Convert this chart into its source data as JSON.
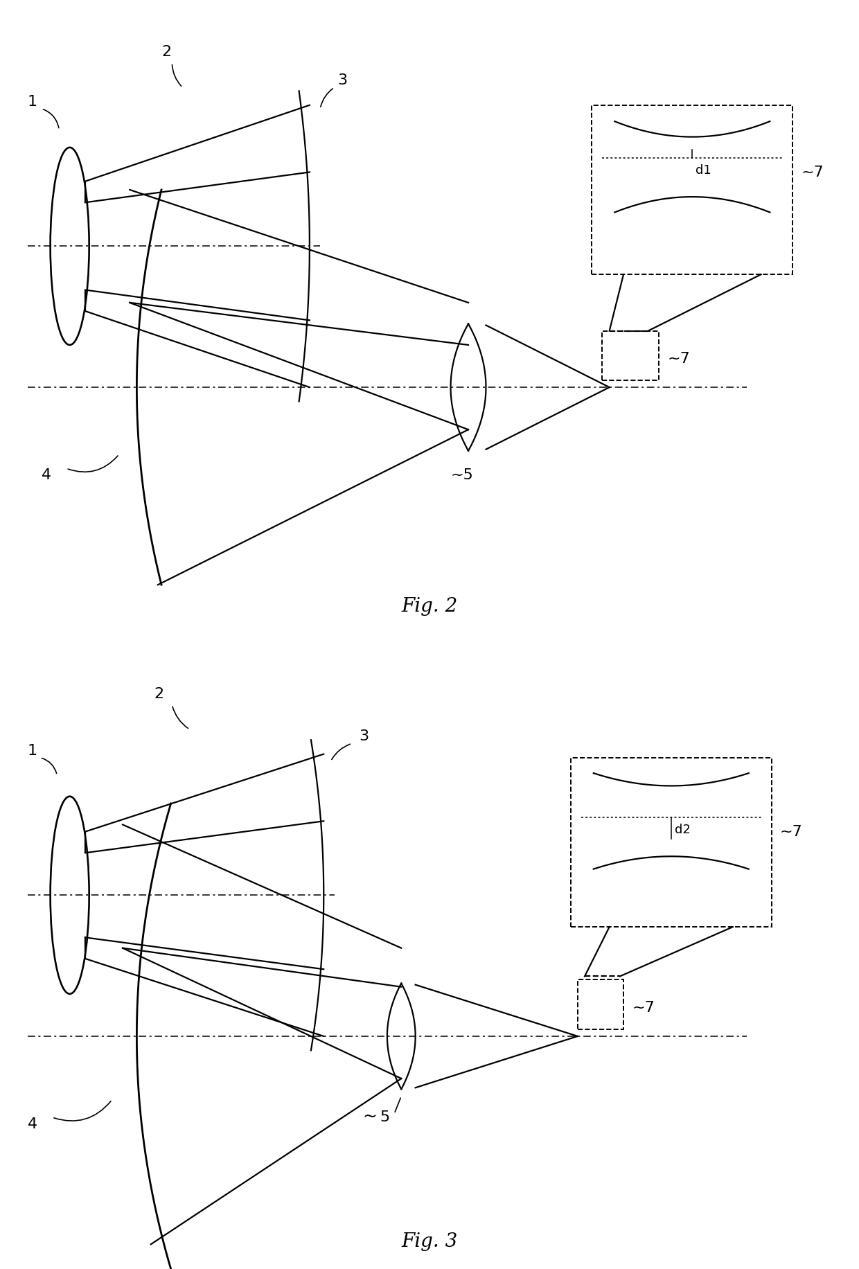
{
  "bg_color": "#ffffff",
  "line_color": "#000000",
  "fig2_title": "Fig. 2",
  "fig3_title": "Fig. 3",
  "font_size_title": 20,
  "font_size_label": 16,
  "lw_main": 1.6,
  "lw_dash": 1.3
}
